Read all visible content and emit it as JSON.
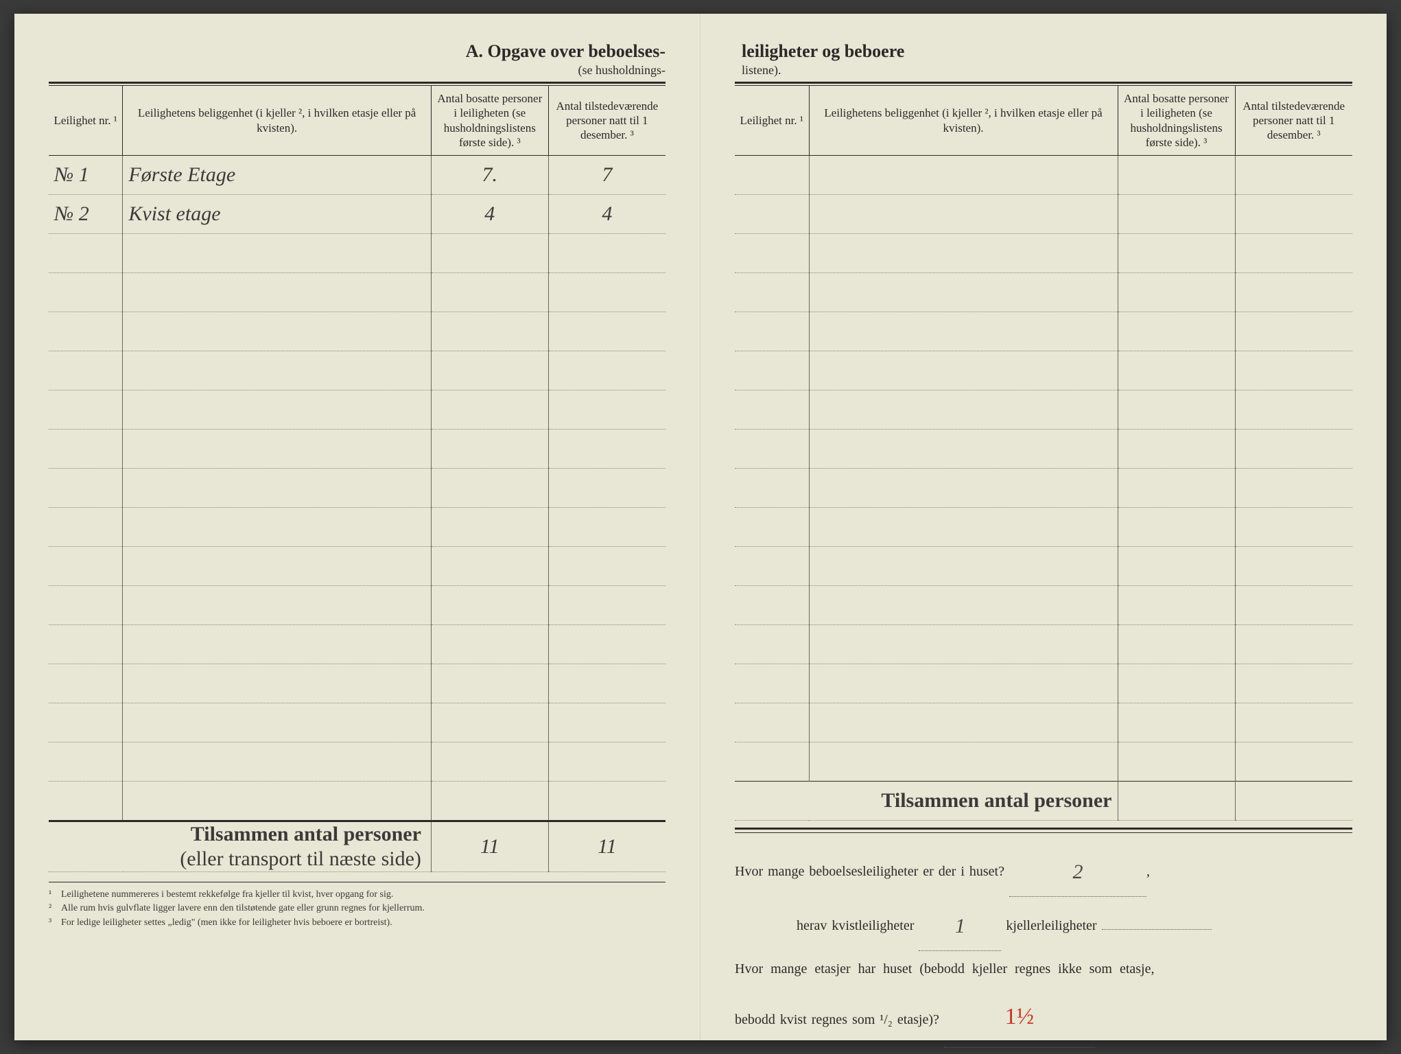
{
  "page_bg": "#e8e6d4",
  "text_color": "#2a2a2a",
  "left": {
    "title": "A.  Opgave over beboelses-",
    "subtitle": "(se husholdnings-",
    "headers": {
      "nr": "Leilighet nr. ¹",
      "loc": "Leilighetens beliggenhet (i kjeller ², i hvilken etasje eller på kvisten).",
      "c1": "Antal bosatte personer i leiligheten (se husholdningslistens første side). ³",
      "c2": "Antal tilstedeværende personer natt til 1 desember. ³"
    },
    "rows": [
      {
        "nr": "№ 1",
        "loc": "Første Etage",
        "c1": "7.",
        "c2": "7"
      },
      {
        "nr": "№ 2",
        "loc": "Kvist etage",
        "c1": "4",
        "c2": "4"
      }
    ],
    "blank_rows": 15,
    "total_label_bold": "Tilsammen antal personer",
    "total_label_sub": "(eller transport til næste side)",
    "totals": {
      "c1": "11",
      "c2": "11"
    },
    "footnotes": [
      "Leilighetene nummereres i bestemt rekkefølge fra kjeller til kvist, hver opgang for sig.",
      "Alle rum hvis gulvflate ligger lavere enn den tilstøtende gate eller grunn regnes for kjellerrum.",
      "For ledige leiligheter settes „ledig\" (men ikke for leiligheter hvis beboere er bortreist)."
    ]
  },
  "right": {
    "title": "leiligheter og beboere",
    "subtitle": "listene).",
    "headers": {
      "nr": "Leilighet nr. ¹",
      "loc": "Leilighetens beliggenhet (i kjeller ², i hvilken etasje eller på kvisten).",
      "c1": "Antal bosatte personer i leiligheten (se husholdningslistens første side). ³",
      "c2": "Antal tilstedeværende personer natt til 1 desember. ³"
    },
    "blank_rows": 16,
    "total_label": "Tilsammen antal personer",
    "q1_a": "Hvor mange beboelsesleiligheter er der i huset?",
    "q1_ans": "2",
    "q2_a": "herav kvistleiligheter",
    "q2_ans": "1",
    "q2_b": "kjellerleiligheter",
    "q3_a": "Hvor mange etasjer har huset (bebodd kjeller regnes ikke som etasje,",
    "q3_b": "bebodd kvist regnes som ¹/₂ etasje)?",
    "q3_ans": "1½"
  }
}
